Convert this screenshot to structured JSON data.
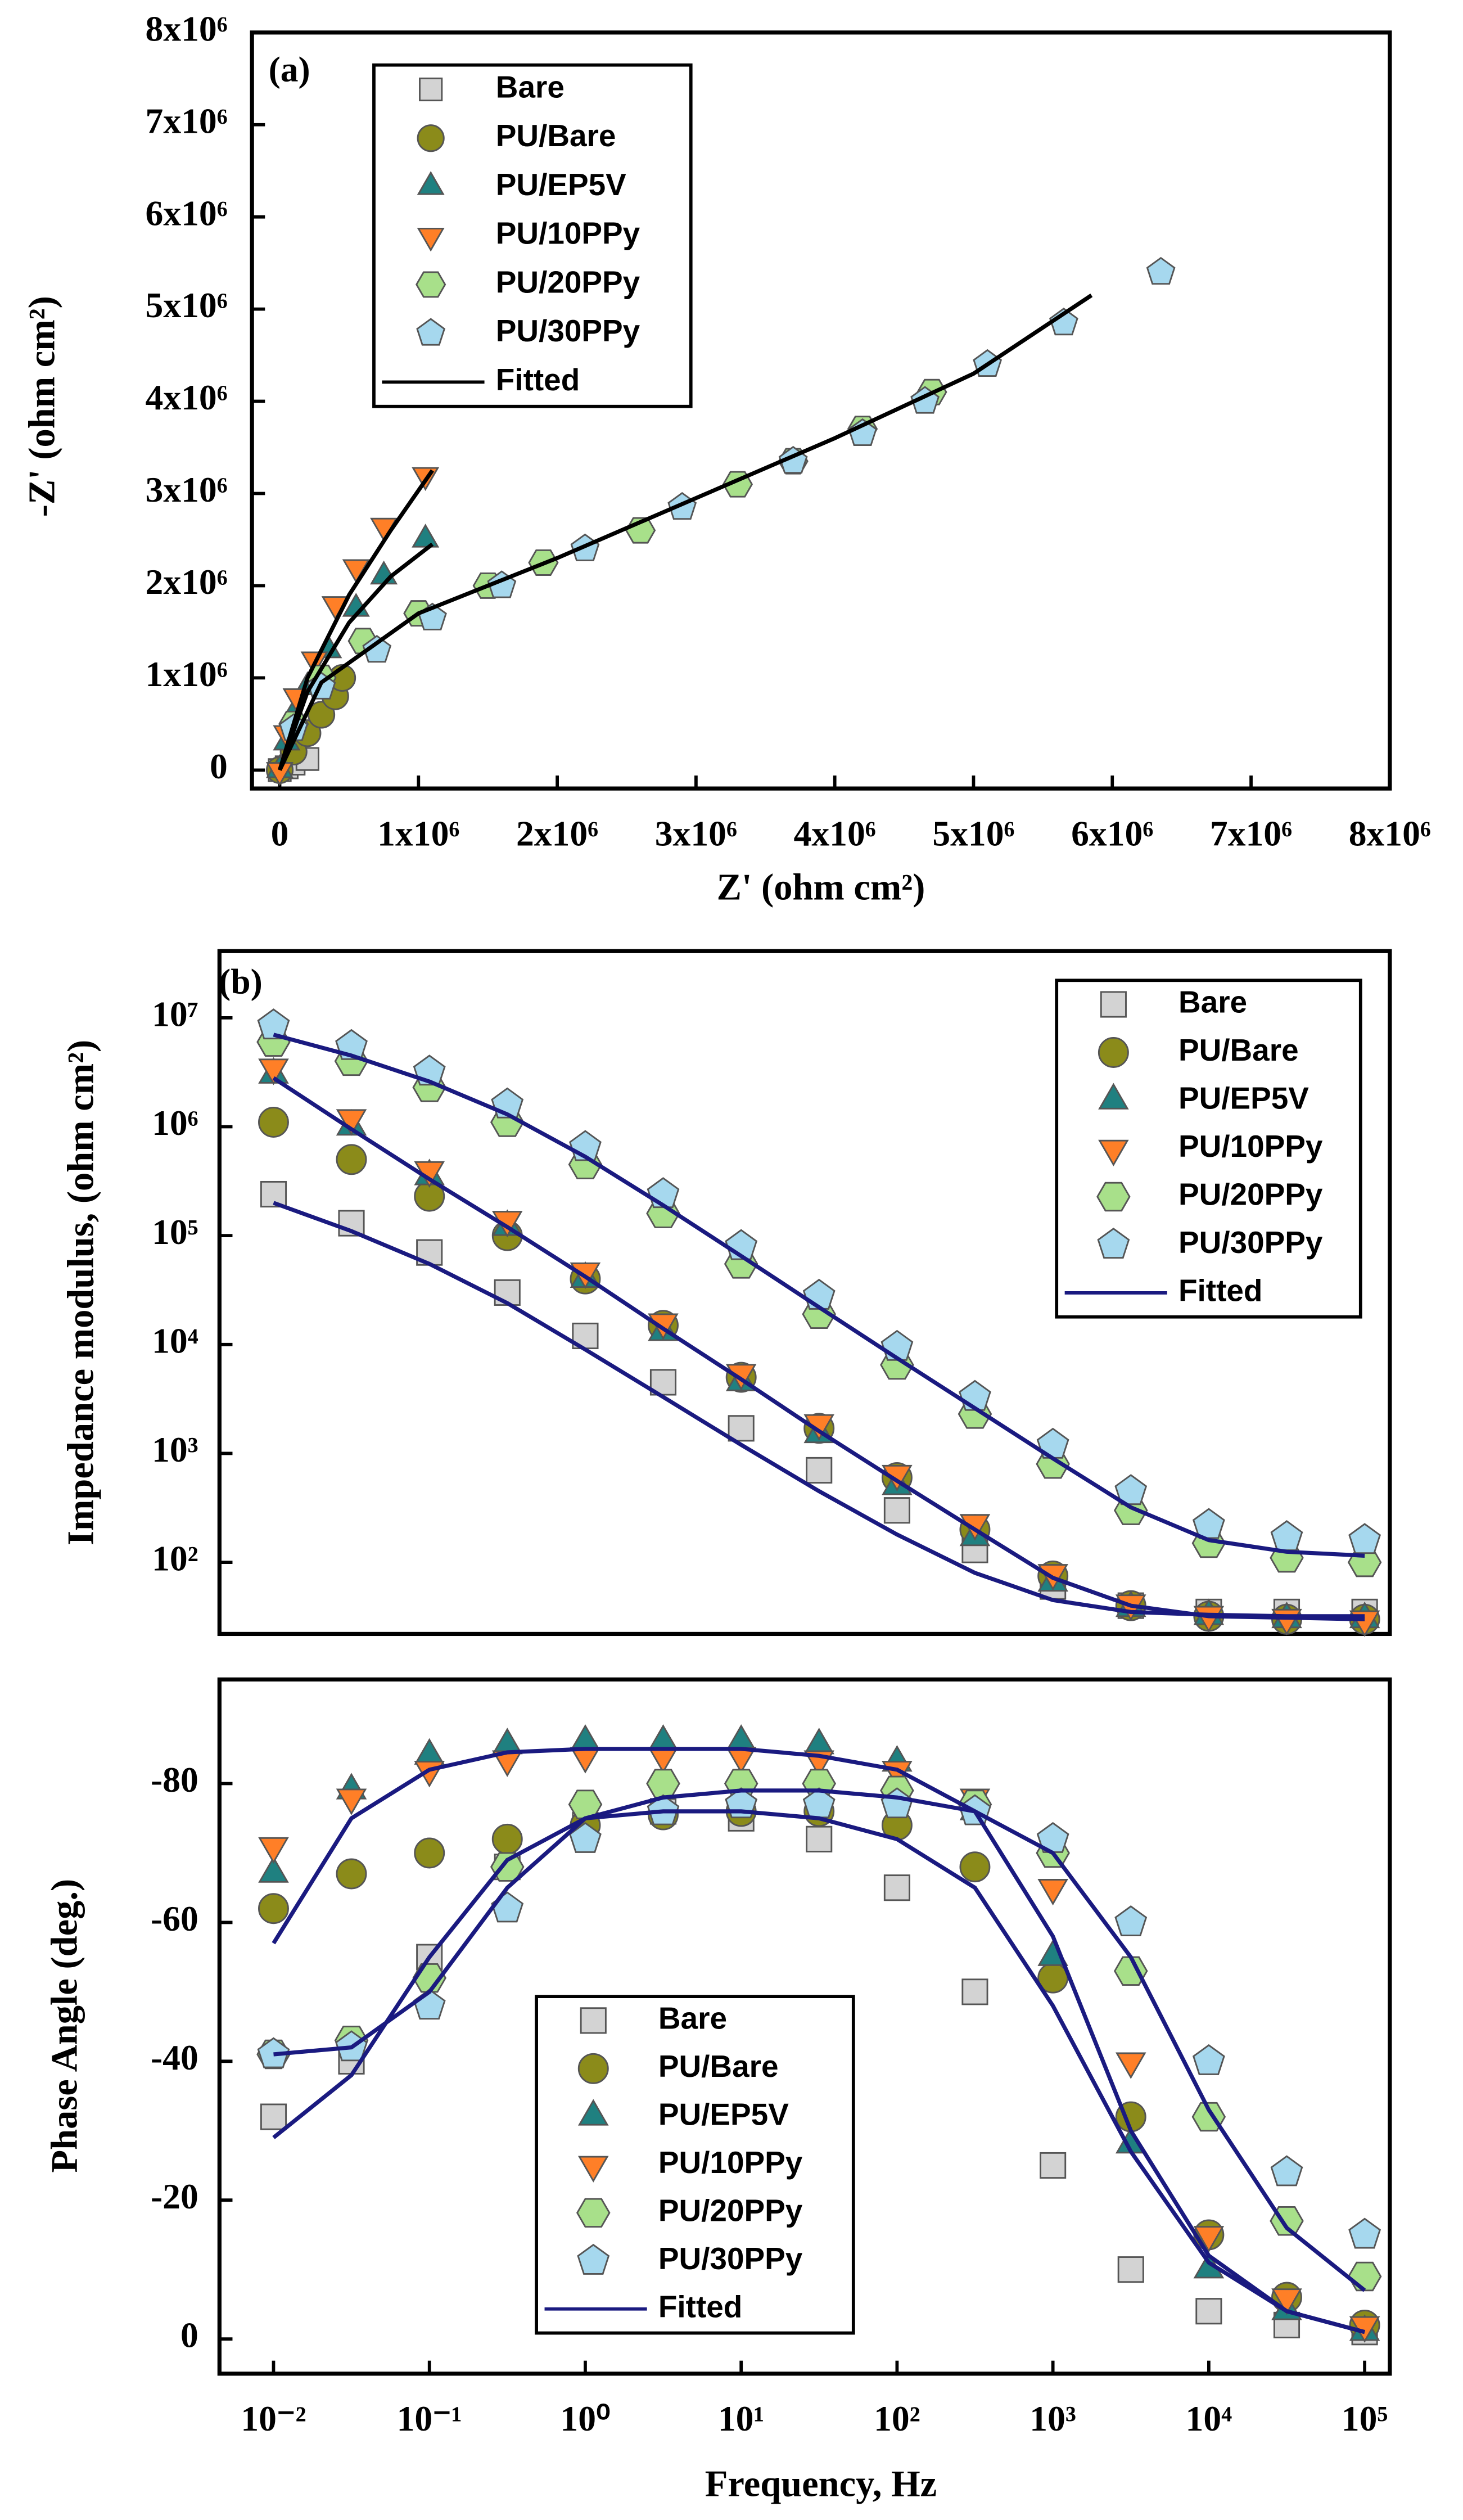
{
  "chart_data": [
    {
      "type": "scatter",
      "annotation": "(a)",
      "ylabel": "-Z' (ohm cm²)",
      "xlabel": "Z' (ohm cm²)",
      "xlim": [
        -200000,
        8000000
      ],
      "ylim": [
        -200000,
        8000000
      ],
      "xticks": [
        0,
        {
          "value": 1000000,
          "label": "1x10⁶"
        },
        {
          "value": 2000000,
          "label": "2x10⁶"
        },
        {
          "value": 3000000,
          "label": "3x10⁶"
        },
        {
          "value": 4000000,
          "label": "4x10⁶"
        },
        {
          "value": 5000000,
          "label": "5x10⁶"
        },
        {
          "value": 6000000,
          "label": "6x10⁶"
        },
        {
          "value": 7000000,
          "label": "7x10⁶"
        },
        {
          "value": 8000000,
          "label": "8x10⁶"
        }
      ],
      "yticks": [
        0,
        {
          "value": 1000000,
          "label": "1x10⁶"
        },
        {
          "value": 2000000,
          "label": "2x10⁶"
        },
        {
          "value": 3000000,
          "label": "3x10⁶"
        },
        {
          "value": 4000000,
          "label": "4x10⁶"
        },
        {
          "value": 5000000,
          "label": "5x10⁶"
        },
        {
          "value": 6000000,
          "label": "6x10⁶"
        },
        {
          "value": 7000000,
          "label": "7x10⁶"
        },
        {
          "value": 8000000,
          "label": "8x10⁶"
        }
      ],
      "series": [
        {
          "name": "Bare",
          "color": "#d3d3d3",
          "marker": "square",
          "x": [
            0,
            50000,
            100000,
            200000
          ],
          "values": [
            0,
            30000,
            70000,
            120000
          ]
        },
        {
          "name": "PU/Bare",
          "color": "#8b8b1a",
          "marker": "circle",
          "x": [
            0,
            100000,
            200000,
            300000,
            400000,
            450000
          ],
          "values": [
            0,
            200000,
            400000,
            600000,
            800000,
            1000000
          ]
        },
        {
          "name": "PU/EP5V",
          "color": "#1f8080",
          "marker": "triangle-up",
          "x": [
            0,
            50000,
            100000,
            200000,
            350000,
            550000,
            750000,
            1050000
          ],
          "values": [
            0,
            300000,
            600000,
            900000,
            1300000,
            1750000,
            2100000,
            2500000
          ]
        },
        {
          "name": "PU/10PPy",
          "color": "#ff7f27",
          "marker": "triangle-down",
          "x": [
            0,
            50000,
            120000,
            250000,
            400000,
            550000,
            750000,
            1050000
          ],
          "values": [
            0,
            400000,
            800000,
            1200000,
            1800000,
            2200000,
            2650000,
            3200000
          ]
        },
        {
          "name": "PU/20PPy",
          "color": "#a8e08a",
          "marker": "hexagon",
          "x": [
            100000,
            300000,
            600000,
            1000000,
            1500000,
            1900000,
            2600000,
            3300000,
            3700000,
            4200000,
            4700000
          ],
          "values": [
            500000,
            1000000,
            1400000,
            1700000,
            2000000,
            2250000,
            2600000,
            3100000,
            3350000,
            3700000,
            4100000
          ]
        },
        {
          "name": "PU/30PPy",
          "color": "#a6d8ee",
          "marker": "pentagon",
          "x": [
            100000,
            300000,
            700000,
            1100000,
            1600000,
            2200000,
            2900000,
            3700000,
            4200000,
            4650000,
            5100000,
            5650000,
            6350000
          ],
          "values": [
            450000,
            900000,
            1300000,
            1650000,
            2000000,
            2400000,
            2850000,
            3350000,
            3650000,
            4000000,
            4400000,
            4850000,
            5400000
          ]
        }
      ],
      "fit": {
        "name": "Fitted",
        "color": "#000000",
        "lines": [
          {
            "x": [
              0,
              200000,
              500000,
              800000,
              1100000
            ],
            "values": [
              0,
              1000000,
              1900000,
              2600000,
              3250000
            ]
          },
          {
            "x": [
              0,
              200000,
              500000,
              800000,
              1100000
            ],
            "values": [
              0,
              850000,
              1600000,
              2100000,
              2450000
            ]
          },
          {
            "x": [
              0,
              300000,
              1000000,
              2000000,
              3000000,
              4000000,
              5000000,
              5850000
            ],
            "values": [
              0,
              950000,
              1700000,
              2300000,
              2950000,
              3600000,
              4300000,
              5150000
            ]
          }
        ]
      }
    },
    {
      "type": "scatter",
      "annotation": "(b)",
      "ylabel": "Impedance modulus, (ohm cm²)",
      "log_x": true,
      "log_y": true,
      "xlim": [
        0.0045,
        145000
      ],
      "ylim": [
        22,
        41000000
      ],
      "yticks": [
        {
          "value": 100,
          "label": "10²"
        },
        {
          "value": 1000,
          "label": "10³"
        },
        {
          "value": 10000,
          "label": "10⁴"
        },
        {
          "value": 100000,
          "label": "10⁵"
        },
        {
          "value": 1000000,
          "label": "10⁶"
        },
        {
          "value": 10000000,
          "label": "10⁷"
        }
      ],
      "x": [
        0.01,
        0.0316,
        0.1,
        0.316,
        1,
        3.16,
        10,
        31.6,
        100,
        316,
        1000,
        3162,
        10000,
        31623,
        100000
      ],
      "series": [
        {
          "name": "Bare",
          "color": "#d3d3d3",
          "marker": "square",
          "values": [
            240000,
            130000,
            70000,
            30000,
            12000,
            4500,
            1700,
            700,
            300,
            130,
            60,
            40,
            35,
            35,
            35
          ]
        },
        {
          "name": "PU/Bare",
          "color": "#8b8b1a",
          "marker": "circle",
          "values": [
            1100000,
            500000,
            230000,
            100000,
            40000,
            15000,
            5000,
            1700,
            600,
            200,
            75,
            40,
            32,
            30,
            30
          ]
        },
        {
          "name": "PU/EP5V",
          "color": "#1f8080",
          "marker": "triangle-up",
          "values": [
            3000000,
            1000000,
            350000,
            120000,
            40000,
            13000,
            4500,
            1500,
            500,
            170,
            65,
            38,
            32,
            30,
            30
          ]
        },
        {
          "name": "PU/10PPy",
          "color": "#ff7f27",
          "marker": "triangle-down",
          "values": [
            3500000,
            1200000,
            400000,
            140000,
            47000,
            16000,
            5500,
            1900,
            650,
            230,
            80,
            42,
            33,
            31,
            30
          ]
        },
        {
          "name": "PU/20PPy",
          "color": "#a8e08a",
          "marker": "hexagon",
          "values": [
            6000000,
            4000000,
            2300000,
            1100000,
            450000,
            160000,
            55000,
            19000,
            6500,
            2300,
            800,
            300,
            150,
            110,
            100
          ]
        },
        {
          "name": "PU/30PPy",
          "color": "#a6d8ee",
          "marker": "pentagon",
          "values": [
            8500000,
            5500000,
            3200000,
            1600000,
            650000,
            240000,
            80000,
            28000,
            9500,
            3300,
            1200,
            450,
            220,
            170,
            160
          ]
        }
      ],
      "fit": {
        "name": "Fitted",
        "color": "#1a1a80",
        "lines": [
          {
            "values": [
              200000,
              110000,
              55000,
              24000,
              9000,
              3300,
              1200,
              450,
              180,
              80,
              45,
              35,
              33,
              32,
              32
            ]
          },
          {
            "values": [
              2800000,
              950000,
              330000,
              120000,
              42000,
              14000,
              4800,
              1600,
              560,
              200,
              72,
              40,
              32,
              31,
              30
            ]
          },
          {
            "values": [
              7000000,
              4500000,
              2600000,
              1300000,
              530000,
              190000,
              65000,
              22000,
              7500,
              2600,
              900,
              320,
              160,
              125,
              115
            ]
          }
        ]
      }
    },
    {
      "type": "scatter",
      "ylabel": "Phase Angle (deg.)",
      "xlabel": "Frequency, Hz",
      "log_x": true,
      "xlim": [
        0.0045,
        145000
      ],
      "ylim": [
        5,
        -95
      ],
      "xticks": [
        {
          "value": 0.01,
          "label": "10⁻²"
        },
        {
          "value": 0.1,
          "label": "10⁻¹"
        },
        {
          "value": 1,
          "label": "10⁰"
        },
        {
          "value": 10,
          "label": "10¹"
        },
        {
          "value": 100,
          "label": "10²"
        },
        {
          "value": 1000,
          "label": "10³"
        },
        {
          "value": 10000,
          "label": "10⁴"
        },
        {
          "value": 100000,
          "label": "10⁵"
        }
      ],
      "yticks": [
        0,
        -20,
        -40,
        -60,
        -80
      ],
      "x": [
        0.01,
        0.0316,
        0.1,
        0.316,
        1,
        3.16,
        10,
        31.6,
        100,
        316,
        1000,
        3162,
        10000,
        31623,
        100000
      ],
      "series": [
        {
          "name": "Bare",
          "color": "#d3d3d3",
          "marker": "square",
          "values": [
            -32,
            -40,
            -55,
            -68,
            -74,
            -76,
            -75,
            -72,
            -65,
            -50,
            -25,
            -10,
            -4,
            -2,
            -1
          ]
        },
        {
          "name": "PU/Bare",
          "color": "#8b8b1a",
          "marker": "circle",
          "values": [
            -62,
            -67,
            -70,
            -72,
            -74,
            -75.5,
            -76,
            -76,
            -74,
            -68,
            -52,
            -32,
            -15,
            -6,
            -2
          ]
        },
        {
          "name": "PU/EP5V",
          "color": "#1f8080",
          "marker": "triangle-up",
          "values": [
            -67,
            -79,
            -84,
            -85.5,
            -86,
            -86,
            -86,
            -85.5,
            -83,
            -76,
            -55,
            -28,
            -10,
            -4,
            -1
          ]
        },
        {
          "name": "PU/10PPy",
          "color": "#ff7f27",
          "marker": "triangle-down",
          "values": [
            -71,
            -78,
            -82,
            -83.5,
            -84,
            -84,
            -84,
            -83.5,
            -82,
            -78,
            -65,
            -40,
            -15,
            -6,
            -2
          ]
        },
        {
          "name": "PU/20PPy",
          "color": "#a8e08a",
          "marker": "hexagon",
          "values": [
            -41,
            -43,
            -52,
            -68,
            -77,
            -80,
            -80,
            -80,
            -79,
            -77,
            -70,
            -53,
            -32,
            -17,
            -9
          ]
        },
        {
          "name": "PU/30PPy",
          "color": "#a6d8ee",
          "marker": "pentagon",
          "values": [
            -41,
            -42,
            -48,
            -62,
            -72,
            -76,
            -77,
            -77,
            -77,
            -76,
            -72,
            -60,
            -40,
            -24,
            -15
          ]
        }
      ],
      "fit": {
        "name": "Fitted",
        "color": "#1a1a80",
        "lines": [
          {
            "values": [
              -57,
              -75,
              -82,
              -84.5,
              -85,
              -85,
              -85,
              -84,
              -82,
              -76,
              -58,
              -30,
              -12,
              -4,
              -1
            ]
          },
          {
            "values": [
              -29,
              -38,
              -55,
              -69,
              -75,
              -76,
              -76,
              -75,
              -72,
              -65,
              -48,
              -27,
              -11,
              -4,
              -1
            ]
          },
          {
            "values": [
              -41,
              -42,
              -50,
              -65,
              -75,
              -78,
              -79,
              -79,
              -78,
              -76,
              -70,
              -55,
              -33,
              -16,
              -7
            ]
          }
        ]
      }
    }
  ]
}
